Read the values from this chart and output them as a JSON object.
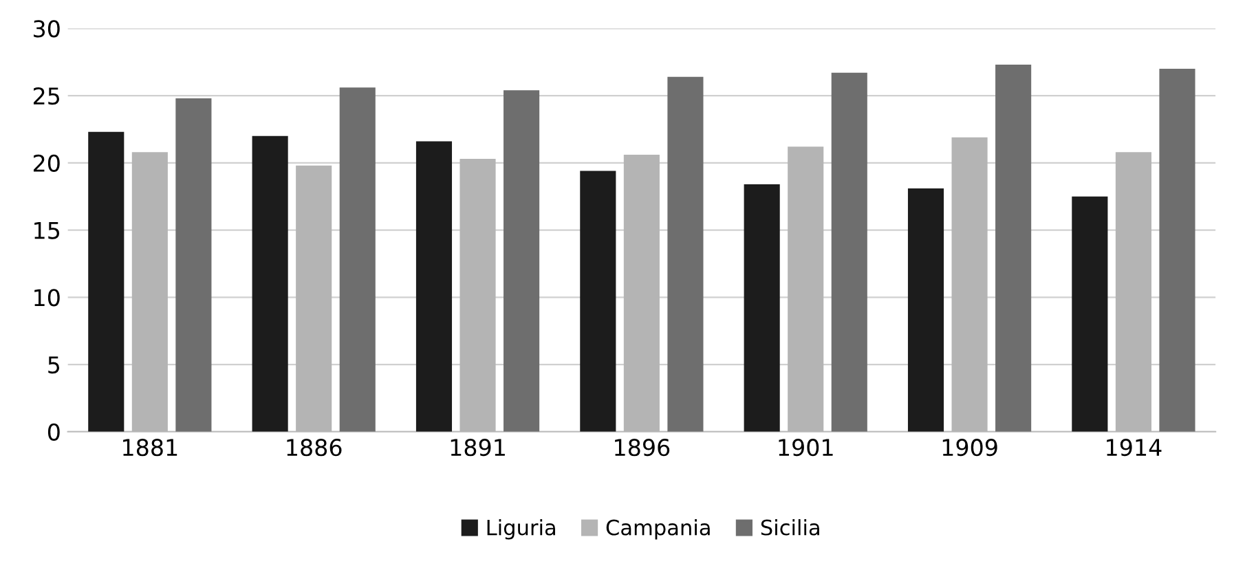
{
  "chart_data": {
    "type": "bar",
    "categories": [
      "1881",
      "1886",
      "1891",
      "1896",
      "1901",
      "1909",
      "1914"
    ],
    "series": [
      {
        "name": "Liguria",
        "color": "#1c1c1c",
        "values": [
          22.3,
          22.0,
          21.6,
          19.4,
          18.4,
          18.1,
          17.5
        ]
      },
      {
        "name": "Campania",
        "color": "#b4b4b4",
        "values": [
          20.8,
          19.8,
          20.3,
          20.6,
          21.2,
          21.9,
          20.8
        ]
      },
      {
        "name": "Sicilia",
        "color": "#6e6e6e",
        "values": [
          24.8,
          25.6,
          25.4,
          26.4,
          26.7,
          27.3,
          27.0
        ]
      }
    ],
    "ylim": [
      0,
      30
    ],
    "yticks": [
      0,
      5,
      10,
      15,
      20,
      25,
      30
    ],
    "grid": "y",
    "legend": "bottom"
  }
}
